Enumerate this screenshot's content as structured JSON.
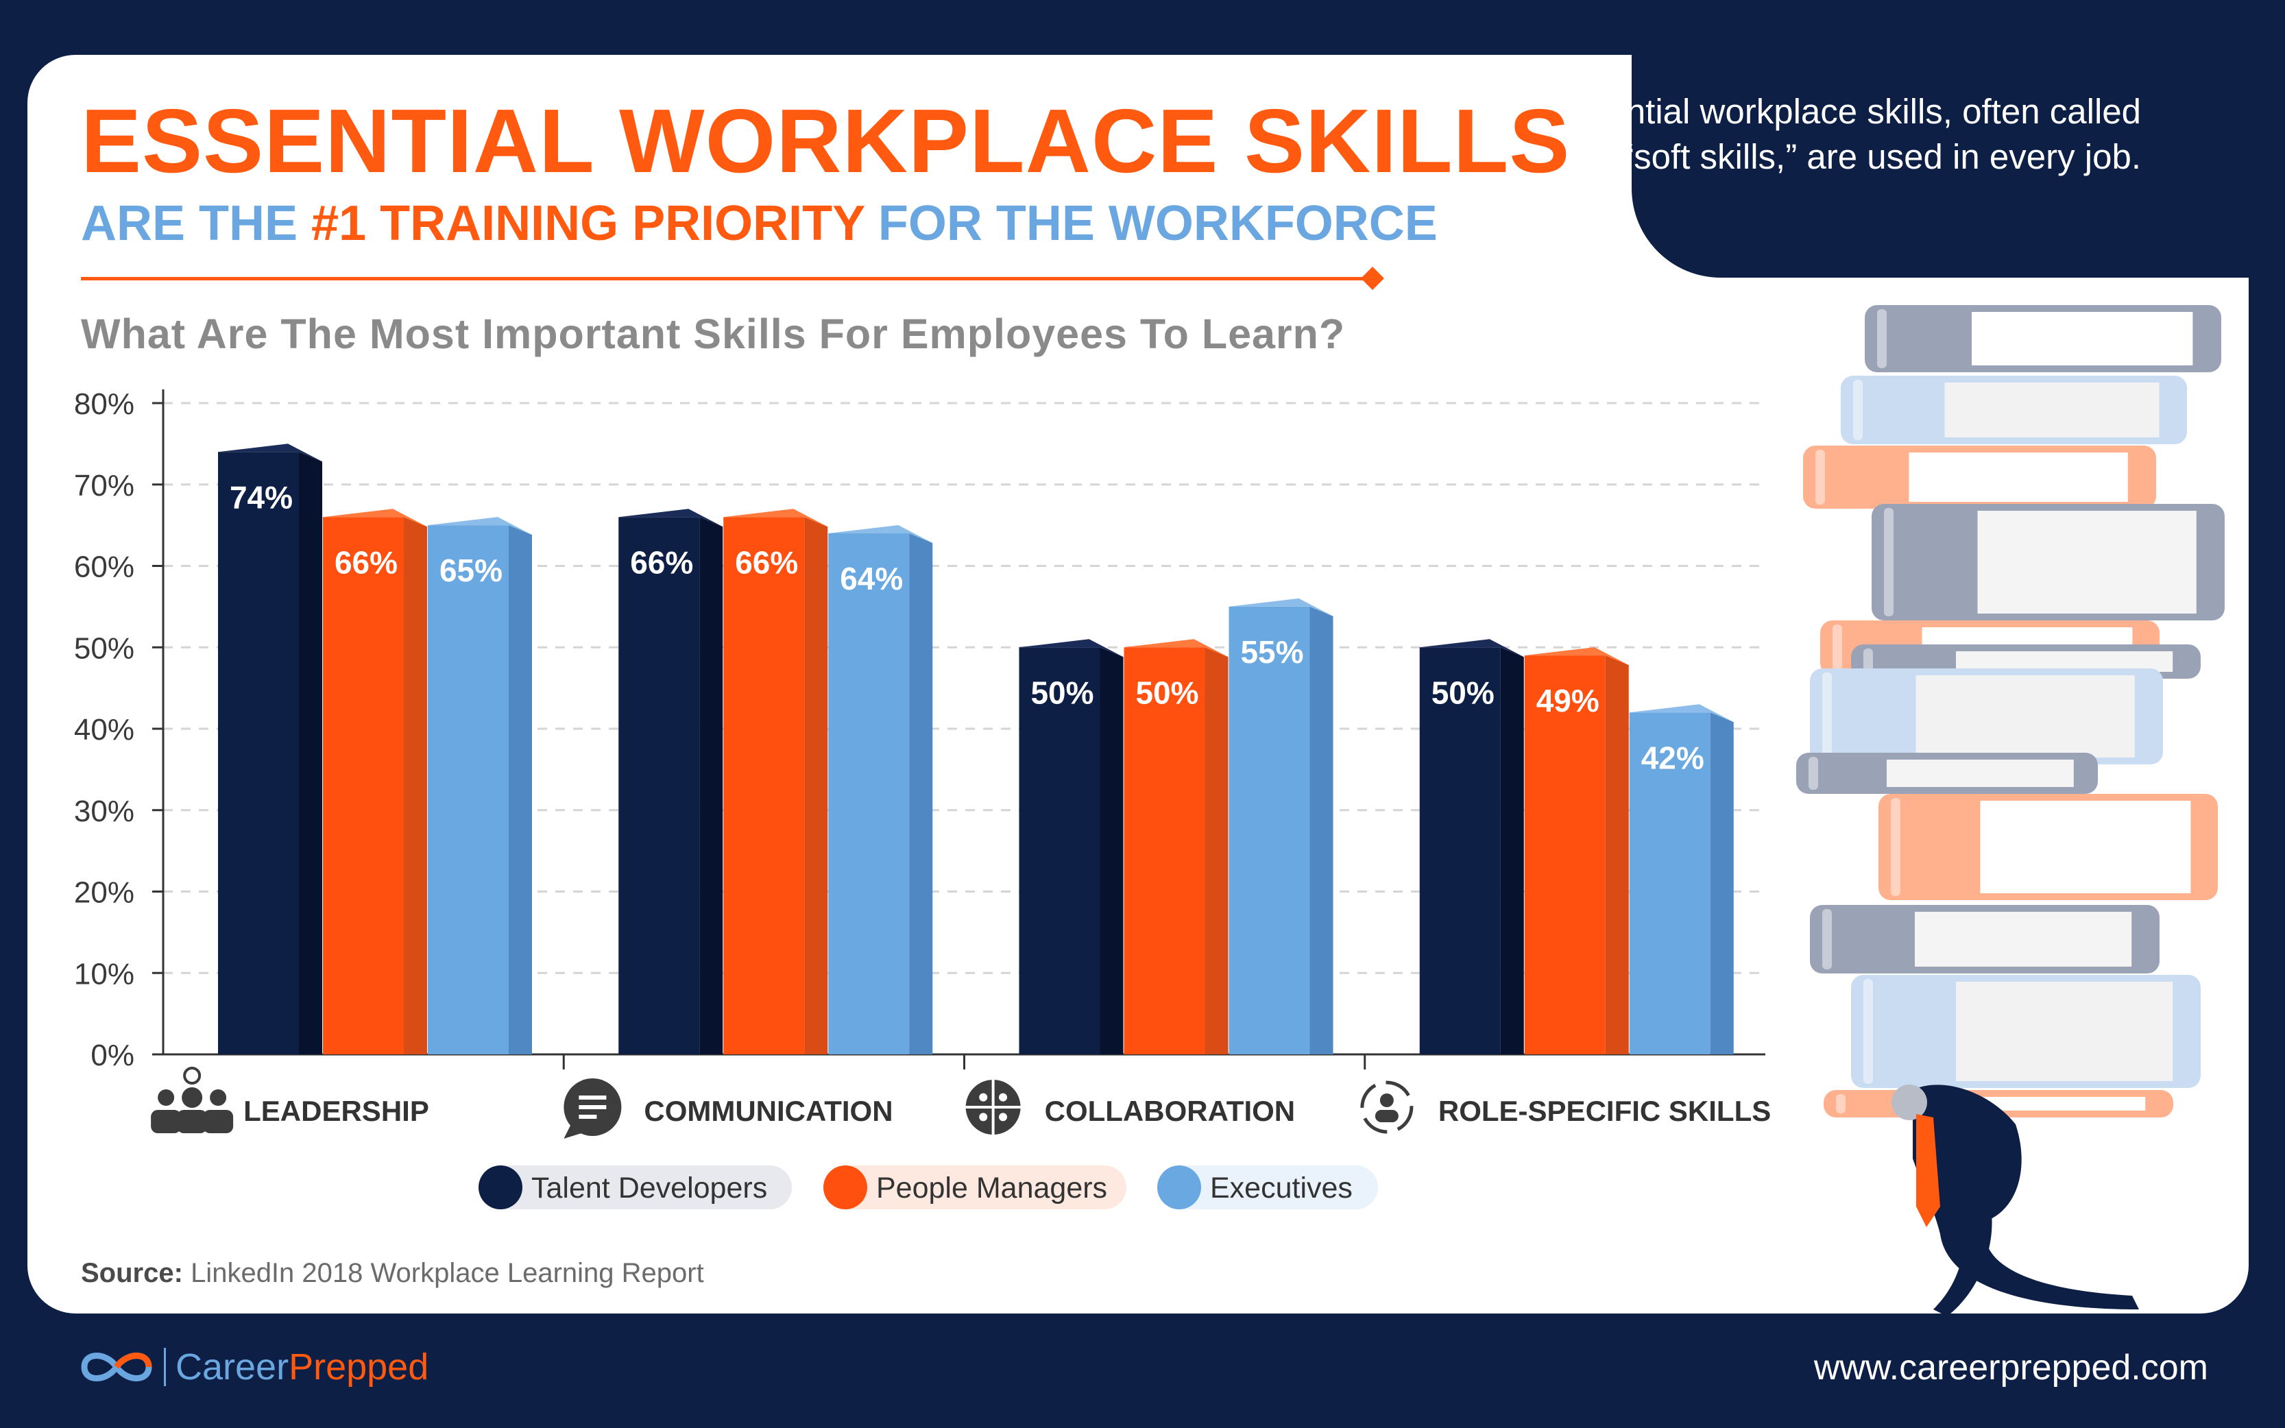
{
  "header": {
    "title_line1": "ESSENTIAL WORKPLACE SKILLS",
    "title_line2_part1": "ARE THE",
    "title_line2_highlight": "#1 TRAINING PRIORITY",
    "title_line2_part2": "FOR THE WORKFORCE",
    "subtitle": "What Are The Most Important Skills For Employees To Learn?"
  },
  "tagline": "Essential workplace skills, often called “soft skills,” are used in every job.",
  "chart_data": {
    "type": "bar",
    "title": "What Are The Most Important Skills For Employees To Learn?",
    "categories": [
      "LEADERSHIP",
      "COMMUNICATION",
      "COLLABORATION",
      "ROLE-SPECIFIC SKILLS"
    ],
    "category_icons": [
      "team-lightbulb-icon",
      "speech-bubble-icon",
      "puzzle-icon",
      "person-cycle-icon"
    ],
    "series": [
      {
        "name": "Talent Developers",
        "values": [
          74,
          66,
          50,
          50
        ],
        "labels": [
          "74%",
          "66%",
          "50%",
          "50%"
        ],
        "color": "#0d1f45"
      },
      {
        "name": "People Managers",
        "values": [
          66,
          66,
          50,
          49
        ],
        "labels": [
          "66%",
          "66%",
          "50%",
          "49%"
        ],
        "color": "#ff5010"
      },
      {
        "name": "Executives",
        "values": [
          65,
          64,
          55,
          42
        ],
        "labels": [
          "65%",
          "64%",
          "55%",
          "42%"
        ],
        "color": "#6aa8e2"
      }
    ],
    "y_ticks": [
      "0%",
      "10%",
      "20%",
      "30%",
      "40%",
      "50%",
      "60%",
      "70%",
      "80%"
    ],
    "ylim": [
      0,
      80
    ],
    "grid": true,
    "legend_position": "bottom"
  },
  "source": {
    "label": "Source:",
    "text": "LinkedIn 2018 Workplace Learning Report"
  },
  "footer": {
    "brand_part1": "Career",
    "brand_part2": "Prepped",
    "url": "www.careerprepped.com"
  },
  "colors": {
    "background": "#0d1f45",
    "accent": "#ff5a10",
    "light_blue": "#6aa6e0"
  }
}
